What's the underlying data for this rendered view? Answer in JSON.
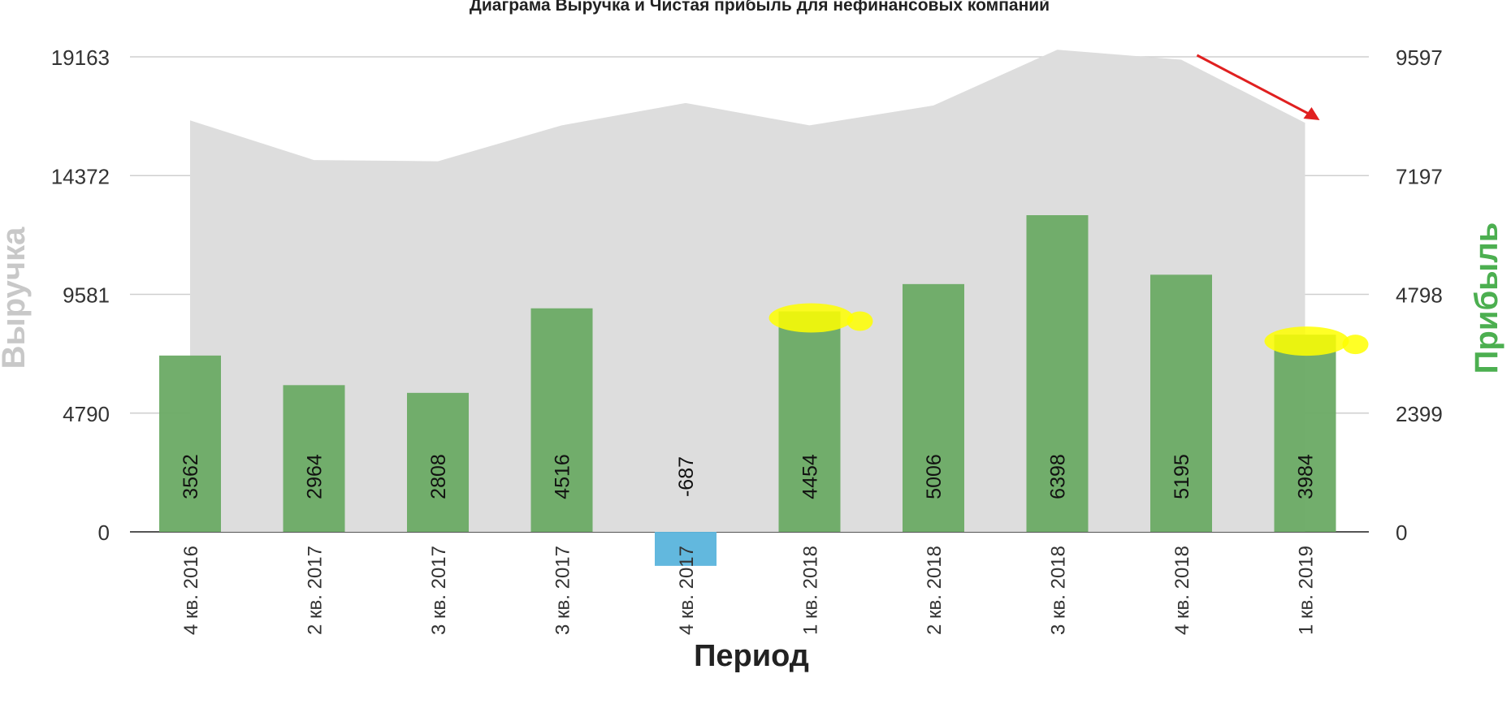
{
  "chart_data": {
    "type": "bar",
    "title": "Диаграма Выручка и Чистая прибыль для нефинансовых компаний",
    "xlabel": "Период",
    "ylabel_left": "Выручка",
    "ylabel_right": "Прибыль",
    "categories": [
      "4 кв. 2016",
      "2 кв. 2017",
      "3 кв. 2017",
      "3 кв. 2017",
      "4 кв. 2017",
      "1 кв. 2018",
      "2 кв. 2018",
      "3 кв. 2018",
      "4 кв. 2018",
      "1 кв. 2019"
    ],
    "y_left": {
      "ticks": [
        0,
        4790,
        9581,
        14372,
        19163
      ],
      "range": [
        0,
        19163
      ]
    },
    "y_right": {
      "ticks": [
        0,
        2399,
        4798,
        7197,
        9597
      ],
      "range": [
        0,
        9597
      ]
    },
    "series": [
      {
        "name": "Выручка",
        "type": "area",
        "axis": "left",
        "values": [
          16600,
          15000,
          14950,
          16400,
          17300,
          16400,
          17200,
          19450,
          19050,
          16500
        ]
      },
      {
        "name": "Прибыль",
        "type": "bar",
        "axis": "right",
        "values": [
          3562,
          2964,
          2808,
          4516,
          -687,
          4454,
          5006,
          6398,
          5195,
          3984
        ]
      }
    ],
    "grid": true,
    "colors": {
      "area": "#dddddd",
      "bar_positive": "#6aaa64",
      "bar_negative": "#5ab4dc",
      "right_label": "#4caf50",
      "left_label": "#c8c8c8",
      "highlight": "#ffff00",
      "arrow": "#e02020"
    },
    "annotations": {
      "highlighted_bars": [
        "1 кв. 2018",
        "1 кв. 2019"
      ],
      "arrow_near": "1 кв. 2019",
      "corner_mark": "x"
    }
  }
}
